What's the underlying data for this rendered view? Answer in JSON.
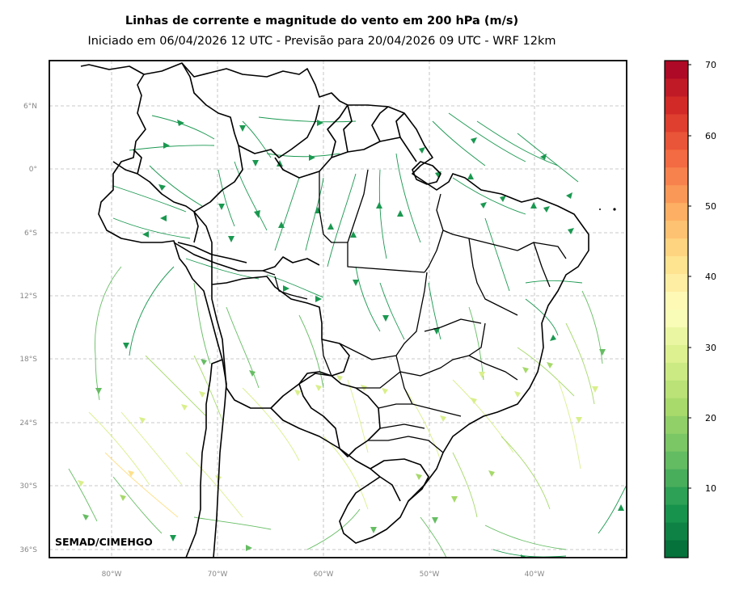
{
  "title": "Linhas de corrente e magnitude do vento em 200 hPa (m/s)",
  "subtitle": "Iniciado em 06/04/2026 12 UTC - Previsão para 20/04/2026 09 UTC - WRF 12km",
  "credit": "SEMAD/CIMEHGO",
  "lat_labels": [
    "6°N",
    "0°",
    "6°S",
    "12°S",
    "18°S",
    "24°S",
    "30°S",
    "36°S"
  ],
  "lon_labels": [
    "80°W",
    "70°W",
    "60°W",
    "50°W",
    "40°W"
  ],
  "colorbar": {
    "ticks": [
      "10",
      "20",
      "30",
      "40",
      "50",
      "60",
      "70"
    ],
    "range": [
      0,
      71
    ],
    "colormap": "RdYlGn_r"
  },
  "colors": {
    "strong": "#d7191c",
    "mid": "#fee08b",
    "weak": "#1a9850"
  }
}
